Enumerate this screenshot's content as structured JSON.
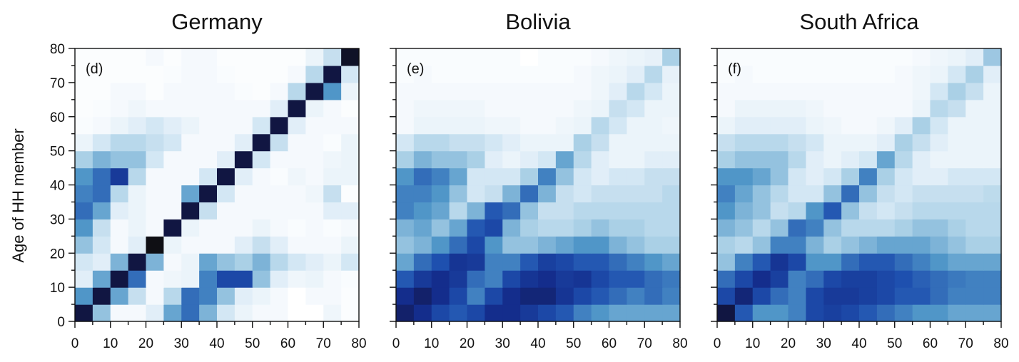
{
  "chart_data": [
    {
      "type": "heatmap",
      "title": "Germany",
      "panel_label": "(d)",
      "ylabel": "Age of HH member",
      "xlabel": "",
      "xlim": [
        0,
        80
      ],
      "ylim": [
        0,
        80
      ],
      "xticks": [
        "0",
        "10",
        "20",
        "30",
        "40",
        "50",
        "60",
        "70",
        "80"
      ],
      "yticks": [
        "0",
        "10",
        "20",
        "30",
        "40",
        "50",
        "60",
        "70",
        "80"
      ],
      "bin_size": 5,
      "colorscale": "white-light blue-dark blue-black",
      "z": [
        [
          0.95,
          0.4,
          0.05,
          0.05,
          0.15,
          0.5,
          0.65,
          0.45,
          0.2,
          0.1,
          0.05,
          0.05,
          0.0,
          0.0,
          0.08,
          0.02
        ],
        [
          0.55,
          0.95,
          0.5,
          0.25,
          0.05,
          0.3,
          0.65,
          0.6,
          0.4,
          0.15,
          0.1,
          0.05,
          0.0,
          0.05,
          0.05,
          0.02
        ],
        [
          0.15,
          0.5,
          0.95,
          0.65,
          0.05,
          0.08,
          0.1,
          0.6,
          0.75,
          0.75,
          0.4,
          0.15,
          0.08,
          0.1,
          0.05,
          0.03
        ],
        [
          0.2,
          0.15,
          0.45,
          0.95,
          0.45,
          0.05,
          0.1,
          0.5,
          0.4,
          0.35,
          0.45,
          0.3,
          0.2,
          0.15,
          0.1,
          0.2
        ],
        [
          0.4,
          0.2,
          0.05,
          0.15,
          1.0,
          0.1,
          0.05,
          0.05,
          0.05,
          0.15,
          0.25,
          0.15,
          0.05,
          0.05,
          0.05,
          0.1
        ],
        [
          0.55,
          0.25,
          0.05,
          0.1,
          0.05,
          0.95,
          0.1,
          0.05,
          0.05,
          0.05,
          0.1,
          0.05,
          0.03,
          0.05,
          0.03,
          0.05
        ],
        [
          0.65,
          0.5,
          0.15,
          0.1,
          0.05,
          0.05,
          0.95,
          0.25,
          0.05,
          0.05,
          0.05,
          0.05,
          0.05,
          0.05,
          0.15,
          0.15
        ],
        [
          0.6,
          0.65,
          0.3,
          0.1,
          0.05,
          0.05,
          0.5,
          0.95,
          0.2,
          0.05,
          0.05,
          0.05,
          0.05,
          0.08,
          0.25,
          0.02
        ],
        [
          0.55,
          0.65,
          0.8,
          0.3,
          0.05,
          0.05,
          0.05,
          0.2,
          0.95,
          0.15,
          0.05,
          0.03,
          0.08,
          0.05,
          0.1,
          0.1
        ],
        [
          0.35,
          0.45,
          0.4,
          0.4,
          0.2,
          0.05,
          0.05,
          0.05,
          0.15,
          0.95,
          0.2,
          0.05,
          0.05,
          0.05,
          0.08,
          0.1
        ],
        [
          0.1,
          0.2,
          0.3,
          0.3,
          0.25,
          0.2,
          0.05,
          0.05,
          0.05,
          0.15,
          0.95,
          0.25,
          0.05,
          0.05,
          0.03,
          0.1
        ],
        [
          0.03,
          0.05,
          0.1,
          0.15,
          0.2,
          0.15,
          0.1,
          0.05,
          0.05,
          0.05,
          0.2,
          0.95,
          0.15,
          0.05,
          0.05,
          0.05
        ],
        [
          0.02,
          0.03,
          0.05,
          0.08,
          0.05,
          0.05,
          0.05,
          0.05,
          0.05,
          0.05,
          0.05,
          0.15,
          0.95,
          0.1,
          0.05,
          0.02
        ],
        [
          0.02,
          0.02,
          0.05,
          0.05,
          0.02,
          0.05,
          0.05,
          0.05,
          0.05,
          0.03,
          0.02,
          0.05,
          0.3,
          0.95,
          0.55,
          0.1
        ],
        [
          0.02,
          0.02,
          0.02,
          0.02,
          0.02,
          0.03,
          0.05,
          0.05,
          0.03,
          0.02,
          0.02,
          0.02,
          0.05,
          0.3,
          0.95,
          0.2
        ],
        [
          0.02,
          0.02,
          0.02,
          0.02,
          0.05,
          0.02,
          0.05,
          0.05,
          0.02,
          0.02,
          0.02,
          0.02,
          0.02,
          0.1,
          0.25,
          0.98
        ]
      ]
    },
    {
      "type": "heatmap",
      "title": "Bolivia",
      "panel_label": "(e)",
      "xlabel": "",
      "ylabel": "",
      "xlim": [
        0,
        80
      ],
      "ylim": [
        0,
        80
      ],
      "xticks": [
        "0",
        "10",
        "20",
        "30",
        "40",
        "50",
        "60",
        "70",
        "80"
      ],
      "bin_size": 5,
      "colorscale": "white-light blue-dark blue-black",
      "z": [
        [
          0.9,
          0.85,
          0.75,
          0.7,
          0.75,
          0.85,
          0.85,
          0.8,
          0.75,
          0.7,
          0.6,
          0.55,
          0.5,
          0.5,
          0.5,
          0.5
        ],
        [
          0.85,
          0.9,
          0.85,
          0.75,
          0.6,
          0.75,
          0.85,
          0.88,
          0.88,
          0.82,
          0.75,
          0.7,
          0.65,
          0.6,
          0.65,
          0.6
        ],
        [
          0.7,
          0.8,
          0.85,
          0.8,
          0.65,
          0.6,
          0.75,
          0.82,
          0.85,
          0.8,
          0.82,
          0.75,
          0.7,
          0.7,
          0.65,
          0.62
        ],
        [
          0.5,
          0.65,
          0.72,
          0.82,
          0.8,
          0.6,
          0.6,
          0.7,
          0.78,
          0.75,
          0.7,
          0.7,
          0.65,
          0.6,
          0.55,
          0.5
        ],
        [
          0.4,
          0.45,
          0.55,
          0.65,
          0.75,
          0.55,
          0.4,
          0.4,
          0.45,
          0.5,
          0.55,
          0.55,
          0.45,
          0.4,
          0.35,
          0.35
        ],
        [
          0.45,
          0.5,
          0.4,
          0.5,
          0.7,
          0.75,
          0.45,
          0.35,
          0.3,
          0.3,
          0.35,
          0.4,
          0.35,
          0.35,
          0.3,
          0.3
        ],
        [
          0.6,
          0.55,
          0.5,
          0.3,
          0.45,
          0.7,
          0.65,
          0.4,
          0.25,
          0.25,
          0.3,
          0.3,
          0.3,
          0.3,
          0.3,
          0.3
        ],
        [
          0.6,
          0.6,
          0.55,
          0.4,
          0.2,
          0.25,
          0.45,
          0.65,
          0.45,
          0.25,
          0.2,
          0.25,
          0.25,
          0.25,
          0.25,
          0.3
        ],
        [
          0.55,
          0.65,
          0.6,
          0.5,
          0.2,
          0.2,
          0.2,
          0.35,
          0.6,
          0.4,
          0.2,
          0.15,
          0.2,
          0.2,
          0.25,
          0.25
        ],
        [
          0.35,
          0.45,
          0.4,
          0.4,
          0.35,
          0.15,
          0.1,
          0.15,
          0.2,
          0.5,
          0.3,
          0.15,
          0.1,
          0.1,
          0.15,
          0.15
        ],
        [
          0.2,
          0.3,
          0.3,
          0.25,
          0.25,
          0.2,
          0.15,
          0.1,
          0.1,
          0.1,
          0.35,
          0.25,
          0.1,
          0.1,
          0.1,
          0.1
        ],
        [
          0.05,
          0.1,
          0.1,
          0.1,
          0.1,
          0.08,
          0.08,
          0.05,
          0.05,
          0.08,
          0.1,
          0.3,
          0.2,
          0.1,
          0.1,
          0.08
        ],
        [
          0.05,
          0.08,
          0.08,
          0.08,
          0.08,
          0.05,
          0.05,
          0.05,
          0.05,
          0.05,
          0.08,
          0.1,
          0.25,
          0.2,
          0.1,
          0.1
        ],
        [
          0.05,
          0.05,
          0.05,
          0.05,
          0.05,
          0.05,
          0.05,
          0.05,
          0.05,
          0.05,
          0.05,
          0.08,
          0.15,
          0.3,
          0.2,
          0.1
        ],
        [
          0.03,
          0.05,
          0.03,
          0.03,
          0.03,
          0.03,
          0.03,
          0.03,
          0.03,
          0.03,
          0.05,
          0.08,
          0.1,
          0.15,
          0.3,
          0.12
        ],
        [
          0.03,
          0.03,
          0.03,
          0.03,
          0.03,
          0.03,
          0.03,
          0.0,
          0.03,
          0.03,
          0.03,
          0.05,
          0.08,
          0.1,
          0.12,
          0.35
        ]
      ]
    },
    {
      "type": "heatmap",
      "title": "South Africa",
      "panel_label": "(f)",
      "xlabel": "",
      "ylabel": "",
      "xlim": [
        0,
        80
      ],
      "ylim": [
        0,
        80
      ],
      "xticks": [
        "0",
        "10",
        "20",
        "30",
        "40",
        "50",
        "60",
        "70",
        "80"
      ],
      "bin_size": 5,
      "colorscale": "white-light blue-dark blue-black",
      "z": [
        [
          0.95,
          0.7,
          0.55,
          0.55,
          0.6,
          0.75,
          0.78,
          0.75,
          0.7,
          0.65,
          0.6,
          0.55,
          0.55,
          0.5,
          0.5,
          0.5
        ],
        [
          0.75,
          0.88,
          0.75,
          0.65,
          0.6,
          0.75,
          0.8,
          0.8,
          0.78,
          0.75,
          0.7,
          0.7,
          0.65,
          0.6,
          0.6,
          0.6
        ],
        [
          0.65,
          0.75,
          0.85,
          0.78,
          0.6,
          0.65,
          0.75,
          0.78,
          0.78,
          0.75,
          0.72,
          0.68,
          0.65,
          0.62,
          0.6,
          0.6
        ],
        [
          0.4,
          0.6,
          0.7,
          0.82,
          0.75,
          0.55,
          0.55,
          0.65,
          0.7,
          0.7,
          0.65,
          0.6,
          0.55,
          0.5,
          0.5,
          0.5
        ],
        [
          0.35,
          0.3,
          0.4,
          0.6,
          0.6,
          0.45,
          0.35,
          0.4,
          0.45,
          0.5,
          0.5,
          0.5,
          0.45,
          0.4,
          0.35,
          0.35
        ],
        [
          0.45,
          0.4,
          0.3,
          0.4,
          0.65,
          0.6,
          0.4,
          0.3,
          0.3,
          0.3,
          0.35,
          0.4,
          0.4,
          0.35,
          0.3,
          0.3
        ],
        [
          0.55,
          0.45,
          0.4,
          0.25,
          0.3,
          0.55,
          0.7,
          0.4,
          0.25,
          0.2,
          0.25,
          0.3,
          0.3,
          0.3,
          0.3,
          0.3
        ],
        [
          0.6,
          0.5,
          0.4,
          0.3,
          0.2,
          0.2,
          0.4,
          0.65,
          0.4,
          0.25,
          0.2,
          0.25,
          0.25,
          0.25,
          0.25,
          0.28
        ],
        [
          0.55,
          0.55,
          0.5,
          0.4,
          0.2,
          0.15,
          0.2,
          0.35,
          0.6,
          0.35,
          0.2,
          0.15,
          0.15,
          0.2,
          0.2,
          0.2
        ],
        [
          0.35,
          0.4,
          0.4,
          0.4,
          0.3,
          0.15,
          0.1,
          0.15,
          0.2,
          0.5,
          0.3,
          0.15,
          0.1,
          0.1,
          0.1,
          0.1
        ],
        [
          0.25,
          0.3,
          0.3,
          0.3,
          0.25,
          0.2,
          0.1,
          0.1,
          0.1,
          0.15,
          0.35,
          0.25,
          0.15,
          0.1,
          0.1,
          0.1
        ],
        [
          0.1,
          0.15,
          0.15,
          0.15,
          0.15,
          0.1,
          0.08,
          0.05,
          0.05,
          0.08,
          0.15,
          0.35,
          0.2,
          0.1,
          0.1,
          0.1
        ],
        [
          0.05,
          0.1,
          0.1,
          0.1,
          0.1,
          0.08,
          0.05,
          0.05,
          0.05,
          0.05,
          0.05,
          0.1,
          0.3,
          0.25,
          0.1,
          0.1
        ],
        [
          0.05,
          0.05,
          0.05,
          0.05,
          0.05,
          0.05,
          0.05,
          0.05,
          0.05,
          0.05,
          0.05,
          0.08,
          0.2,
          0.35,
          0.25,
          0.1
        ],
        [
          0.03,
          0.05,
          0.03,
          0.03,
          0.03,
          0.03,
          0.03,
          0.03,
          0.03,
          0.03,
          0.05,
          0.08,
          0.1,
          0.2,
          0.35,
          0.15
        ],
        [
          0.03,
          0.03,
          0.03,
          0.03,
          0.03,
          0.03,
          0.03,
          0.03,
          0.03,
          0.03,
          0.03,
          0.05,
          0.08,
          0.1,
          0.15,
          0.38
        ]
      ]
    }
  ]
}
